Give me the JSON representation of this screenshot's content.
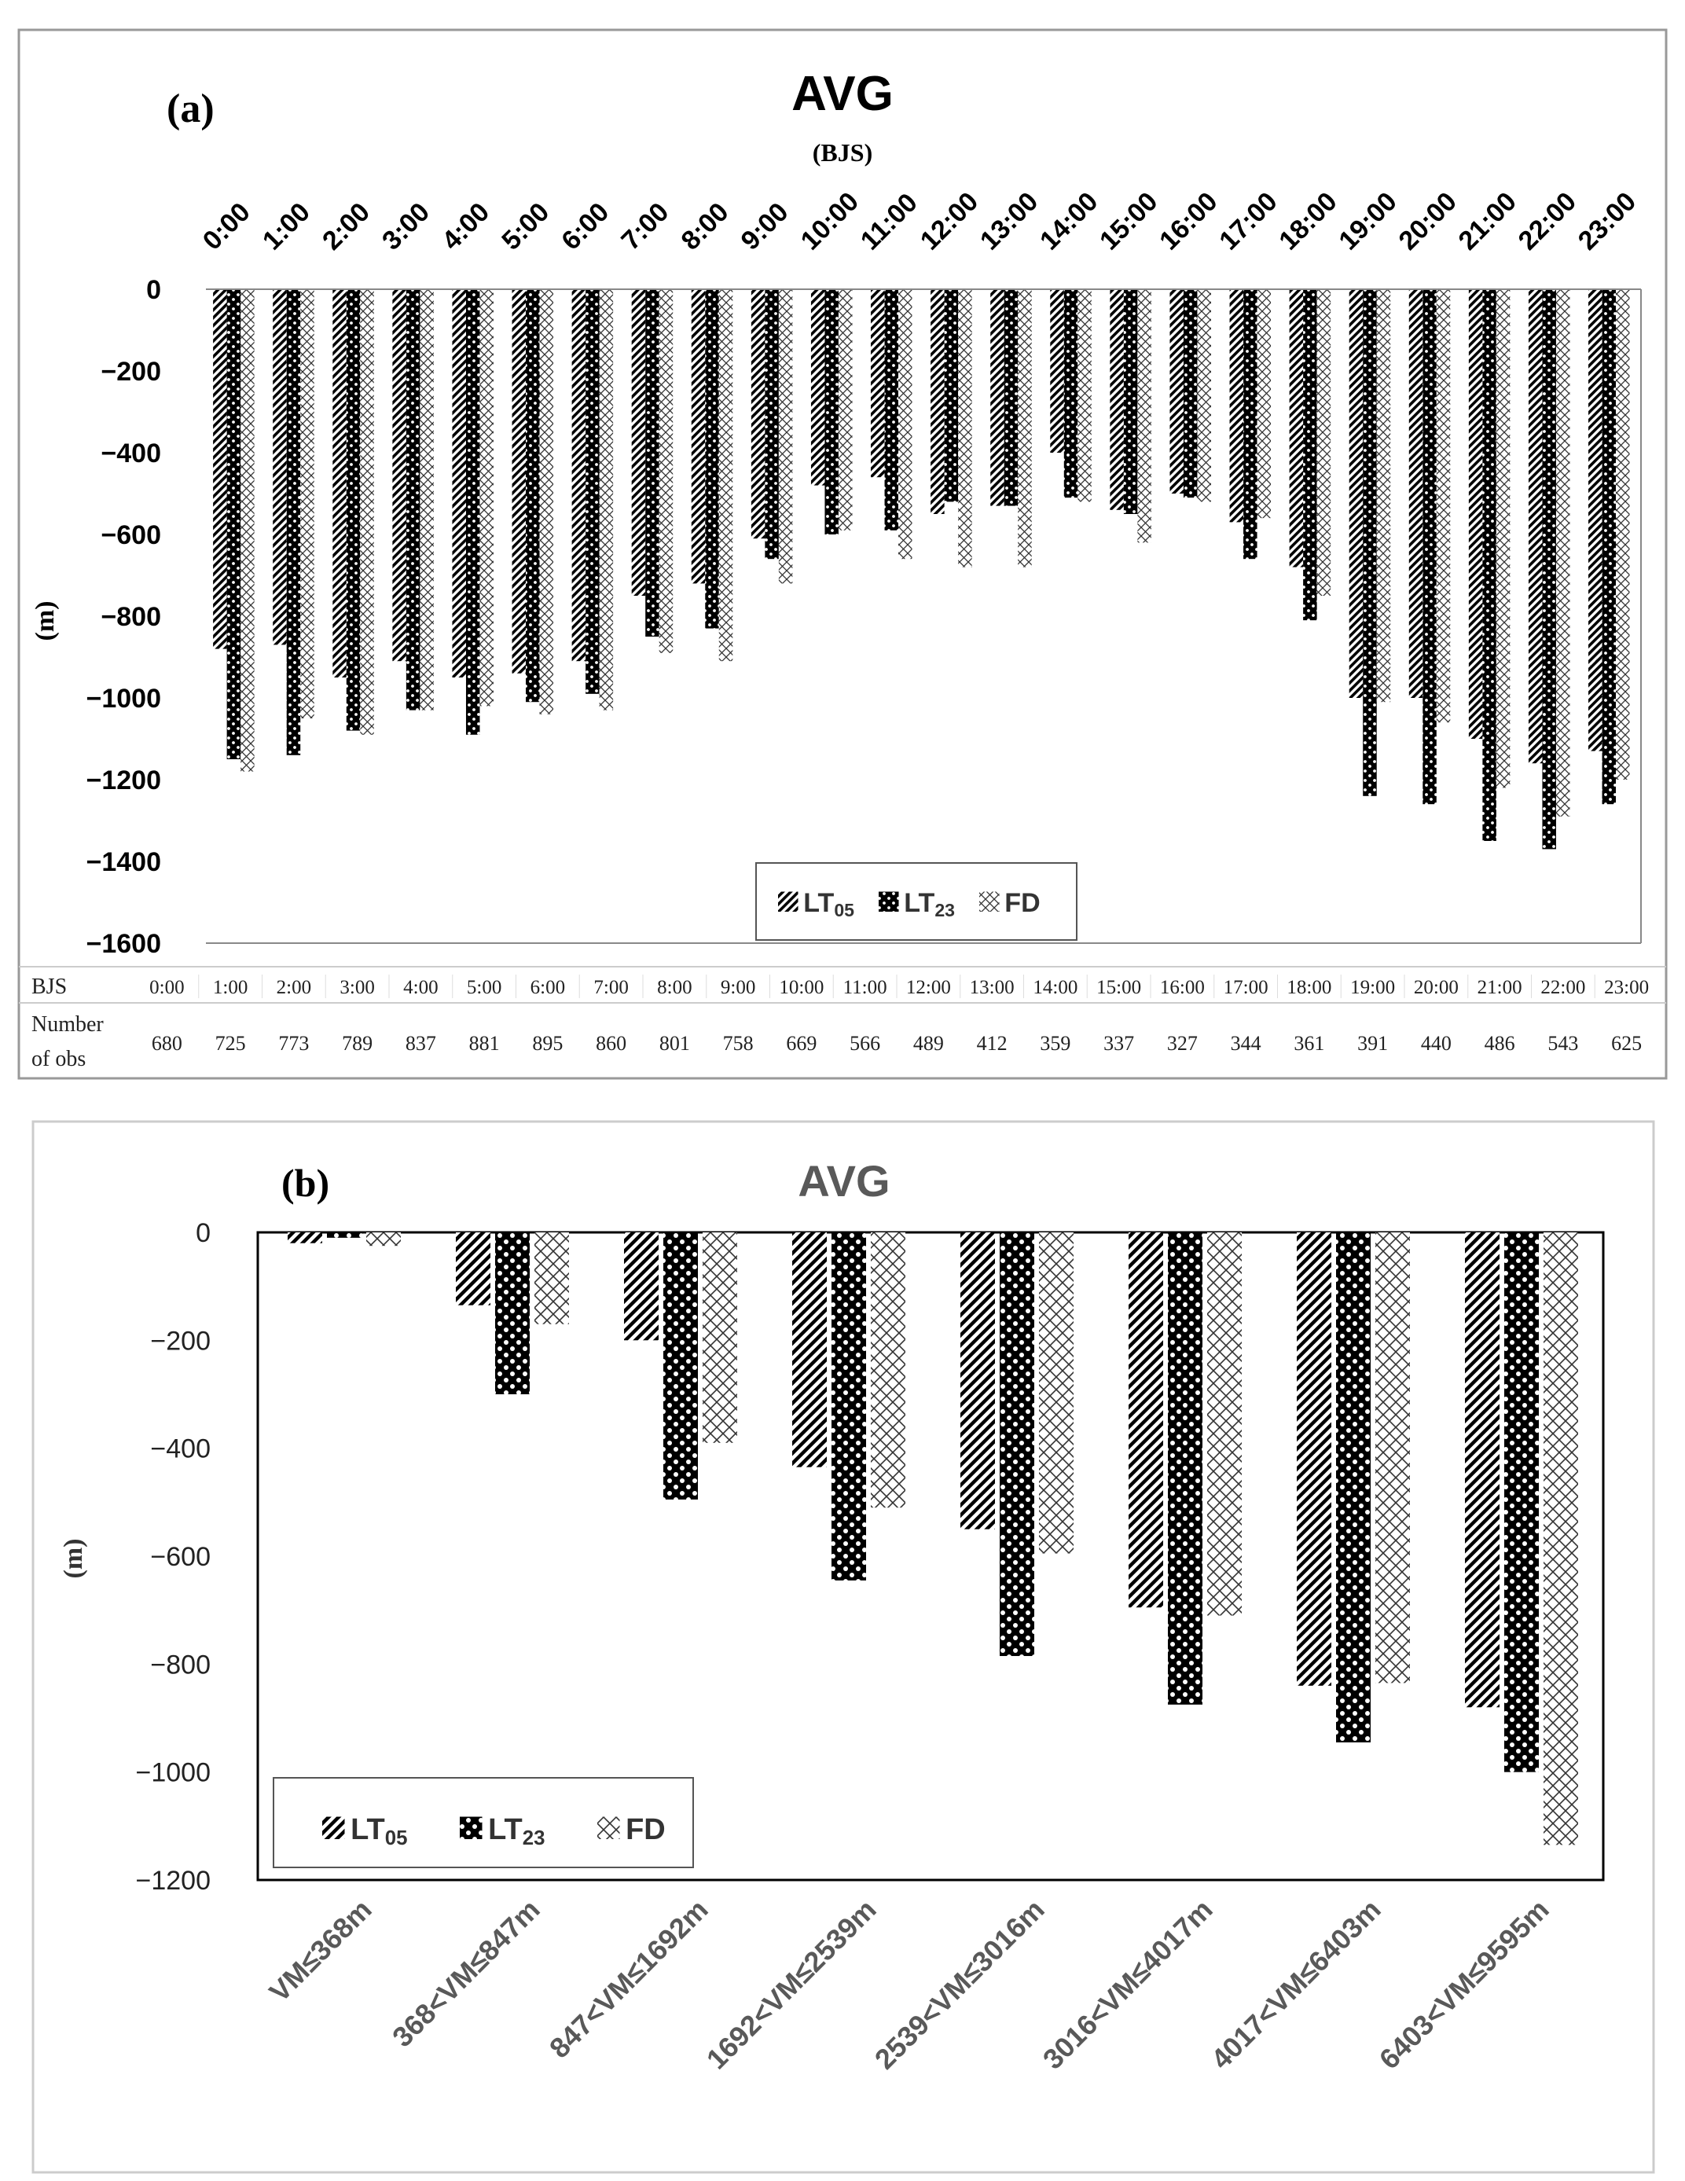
{
  "colors": {
    "frame": "#999999",
    "ink": "#000000",
    "title": "#595959",
    "tick": "#222222"
  },
  "chart_data": [
    {
      "type": "bar",
      "panel_label": "(a)",
      "title": "AVG",
      "subtitle": "(BJS)",
      "ylabel": "(m)",
      "ylim": [
        -1600,
        0
      ],
      "yticks": [
        0,
        -200,
        -400,
        -600,
        -800,
        -1000,
        -1200,
        -1400,
        -1600
      ],
      "categories": [
        "0:00",
        "1:00",
        "2:00",
        "3:00",
        "4:00",
        "5:00",
        "6:00",
        "7:00",
        "8:00",
        "9:00",
        "10:00",
        "11:00",
        "12:00",
        "13:00",
        "14:00",
        "15:00",
        "16:00",
        "17:00",
        "18:00",
        "19:00",
        "20:00",
        "21:00",
        "22:00",
        "23:00"
      ],
      "series": [
        {
          "name": "LT",
          "sub": "05",
          "pattern": "diag",
          "values": [
            -880,
            -870,
            -950,
            -910,
            -950,
            -940,
            -910,
            -750,
            -720,
            -610,
            -480,
            -460,
            -550,
            -530,
            -400,
            -540,
            -500,
            -570,
            -680,
            -1000,
            -1000,
            -1100,
            -1160,
            -1130
          ]
        },
        {
          "name": "LT",
          "sub": "23",
          "pattern": "dots",
          "values": [
            -1150,
            -1140,
            -1080,
            -1030,
            -1090,
            -1010,
            -990,
            -850,
            -830,
            -660,
            -600,
            -590,
            -520,
            -530,
            -510,
            -550,
            -510,
            -660,
            -810,
            -1240,
            -1260,
            -1350,
            -1370,
            -1260
          ]
        },
        {
          "name": "FD",
          "sub": "",
          "pattern": "cross",
          "values": [
            -1180,
            -1050,
            -1090,
            -1030,
            -1020,
            -1040,
            -1030,
            -890,
            -910,
            -720,
            -590,
            -660,
            -680,
            -680,
            -520,
            -620,
            -520,
            -560,
            -750,
            -1010,
            -1060,
            -1220,
            -1290,
            -1200
          ]
        }
      ],
      "table": {
        "row1_label": "BJS",
        "row2_label_line1": "Number",
        "row2_label_line2": "of obs",
        "counts": [
          "680",
          "725",
          "773",
          "789",
          "837",
          "881",
          "895",
          "860",
          "801",
          "758",
          "669",
          "566",
          "489",
          "412",
          "359",
          "337",
          "327",
          "344",
          "361",
          "391",
          "440",
          "486",
          "543",
          "625"
        ]
      }
    },
    {
      "type": "bar",
      "panel_label": "(b)",
      "title": "AVG",
      "ylabel": "(m)",
      "ylim": [
        -1200,
        0
      ],
      "yticks": [
        0,
        -200,
        -400,
        -600,
        -800,
        -1000,
        -1200
      ],
      "categories": [
        "VM≤368m",
        "368<VM≤847m",
        "847<VM≤1692m",
        "1692<VM≤2539m",
        "2539<VM≤3016m",
        "3016<VM≤4017m",
        "4017<VM≤6403m",
        "6403<VM≤9595m"
      ],
      "series": [
        {
          "name": "LT",
          "sub": "05",
          "pattern": "diag",
          "values": [
            -20,
            -135,
            -200,
            -435,
            -550,
            -695,
            -840,
            -880
          ]
        },
        {
          "name": "LT",
          "sub": "23",
          "pattern": "dots",
          "values": [
            -10,
            -300,
            -495,
            -645,
            -785,
            -875,
            -945,
            -1000
          ]
        },
        {
          "name": "FD",
          "sub": "",
          "pattern": "cross",
          "values": [
            -25,
            -170,
            -390,
            -510,
            -595,
            -710,
            -835,
            -1135
          ]
        }
      ]
    }
  ]
}
